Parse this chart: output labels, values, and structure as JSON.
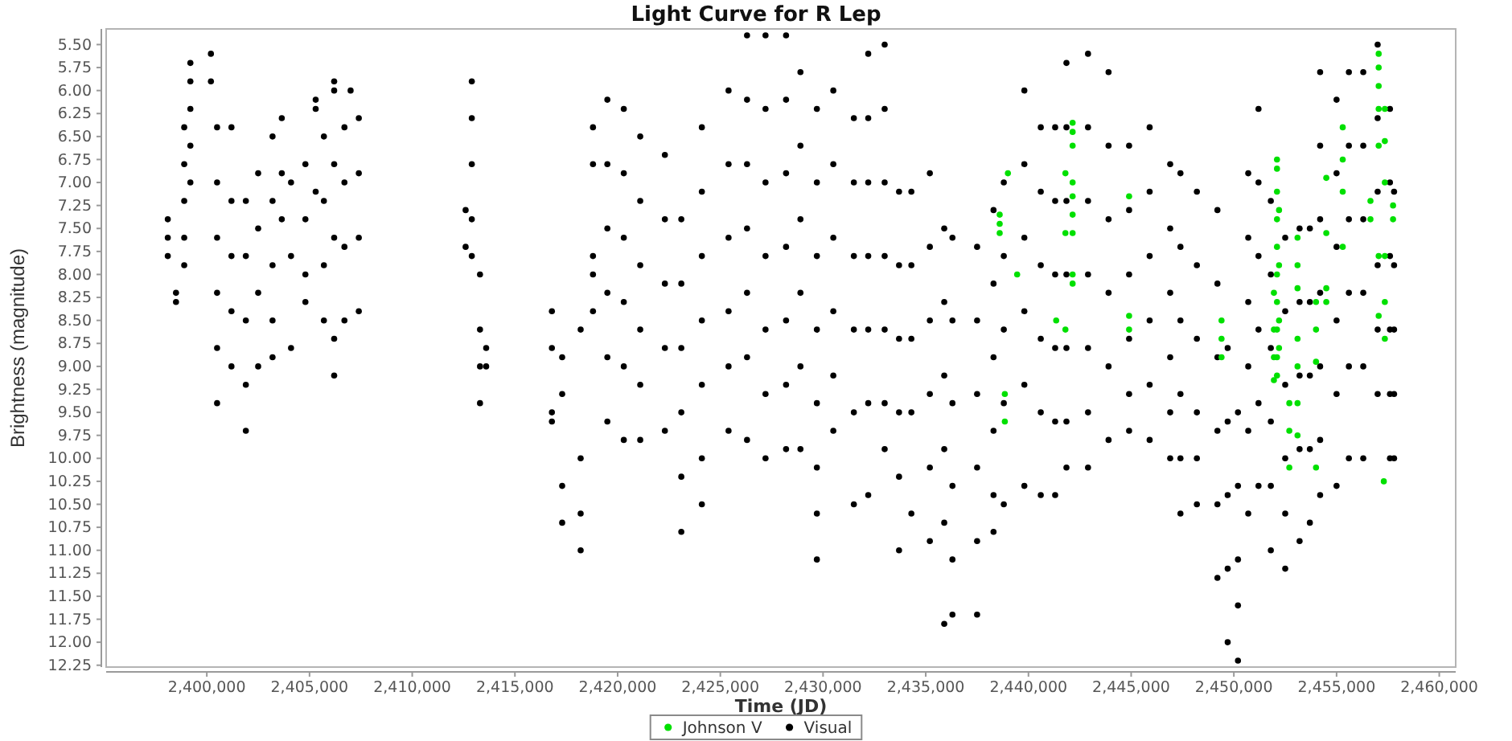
{
  "chart_data": {
    "type": "scatter",
    "title": "Light Curve for R Lep",
    "xlabel": "Time (JD)",
    "ylabel": "Brightness (magnitude)",
    "xlim": [
      2395100,
      2460800
    ],
    "ylim": [
      12.27,
      5.33
    ],
    "xticks": [
      {
        "value": 2400000,
        "label": "2,400,000"
      },
      {
        "value": 2405000,
        "label": "2,405,000"
      },
      {
        "value": 2410000,
        "label": "2,410,000"
      },
      {
        "value": 2415000,
        "label": "2,415,000"
      },
      {
        "value": 2420000,
        "label": "2,420,000"
      },
      {
        "value": 2425000,
        "label": "2,425,000"
      },
      {
        "value": 2430000,
        "label": "2,430,000"
      },
      {
        "value": 2435000,
        "label": "2,435,000"
      },
      {
        "value": 2440000,
        "label": "2,440,000"
      },
      {
        "value": 2445000,
        "label": "2,445,000"
      },
      {
        "value": 2450000,
        "label": "2,450,000"
      },
      {
        "value": 2455000,
        "label": "2,455,000"
      },
      {
        "value": 2460000,
        "label": "2,460,000"
      }
    ],
    "yticks": [
      {
        "value": 5.5,
        "label": "5.50"
      },
      5.75,
      {
        "value": 6,
        "label": "6.00"
      },
      6.25,
      {
        "value": 6.5,
        "label": "6.50"
      },
      6.75,
      {
        "value": 7,
        "label": "7.00"
      },
      7.25,
      {
        "value": 7.5,
        "label": "7.50"
      },
      7.75,
      {
        "value": 8,
        "label": "8.00"
      },
      8.25,
      {
        "value": 8.5,
        "label": "8.50"
      },
      8.75,
      {
        "value": 9,
        "label": "9.00"
      },
      9.25,
      {
        "value": 9.5,
        "label": "9.50"
      },
      9.75,
      {
        "value": 10,
        "label": "10.00"
      },
      10.25,
      {
        "value": 10.5,
        "label": "10.50"
      },
      10.75,
      {
        "value": 11,
        "label": "11.00"
      },
      11.25,
      {
        "value": 11.5,
        "label": "11.50"
      },
      11.75,
      {
        "value": 12,
        "label": "12.00"
      },
      12.25
    ],
    "marker": "circle",
    "legend": "bottom",
    "series": [
      {
        "name": "Johnson V",
        "color": "#00e000",
        "x": [
          2438600,
          2438600,
          2438600,
          2439000,
          2438850,
          2438850,
          2439450,
          2441350,
          2441800,
          2441800,
          2441800,
          2442150,
          2442150,
          2442150,
          2442150,
          2442150,
          2442150,
          2442150,
          2442150,
          2442150,
          2444900,
          2444900,
          2444900,
          2449400,
          2449400,
          2449400,
          2451950,
          2451950,
          2451950,
          2451950,
          2452100,
          2452100,
          2452100,
          2452100,
          2452100,
          2452100,
          2452100,
          2452100,
          2452100,
          2452100,
          2452200,
          2452200,
          2452200,
          2452200,
          2452700,
          2452700,
          2452700,
          2453100,
          2453100,
          2453100,
          2453100,
          2453100,
          2453100,
          2453100,
          2454000,
          2454000,
          2454000,
          2454000,
          2454500,
          2454500,
          2454500,
          2454500,
          2455300,
          2455300,
          2455300,
          2455300,
          2456650,
          2456650,
          2457050,
          2457050,
          2457050,
          2457050,
          2457050,
          2457050,
          2457050,
          2457300,
          2457350,
          2457350,
          2457350,
          2457350,
          2457350,
          2457350,
          2457750,
          2457750
        ],
        "values": [
          7.35,
          7.45,
          7.55,
          6.9,
          9.3,
          9.6,
          8.0,
          8.5,
          6.9,
          7.55,
          8.6,
          6.35,
          6.45,
          6.6,
          7.0,
          7.15,
          7.35,
          7.55,
          8.0,
          8.1,
          7.15,
          8.45,
          8.6,
          8.5,
          8.7,
          8.9,
          8.2,
          8.6,
          8.9,
          9.15,
          6.75,
          6.85,
          7.1,
          7.4,
          7.7,
          8.0,
          8.3,
          8.6,
          8.9,
          9.1,
          7.3,
          7.9,
          8.5,
          8.8,
          9.4,
          9.7,
          10.1,
          7.6,
          7.9,
          8.15,
          8.7,
          9.0,
          9.4,
          9.75,
          8.3,
          8.6,
          8.95,
          10.1,
          6.95,
          7.55,
          8.15,
          8.3,
          6.4,
          6.75,
          7.1,
          7.7,
          7.2,
          7.4,
          5.6,
          5.75,
          5.95,
          6.2,
          6.6,
          7.8,
          8.45,
          10.25,
          6.2,
          6.55,
          7.0,
          7.8,
          8.3,
          8.7,
          7.25,
          7.4
        ]
      },
      {
        "name": "Visual",
        "color": "#000000",
        "x": [
          2398100,
          2398100,
          2398100,
          2398500,
          2398500,
          2398900,
          2398900,
          2398900,
          2398900,
          2398900,
          2399200,
          2399200,
          2399200,
          2399200,
          2399200,
          2400200,
          2400200,
          2400500,
          2400500,
          2400500,
          2400500,
          2400500,
          2400500,
          2401200,
          2401200,
          2401200,
          2401200,
          2401200,
          2401900,
          2401900,
          2401900,
          2401900,
          2401900,
          2402500,
          2402500,
          2402500,
          2402500,
          2403200,
          2403200,
          2403200,
          2403200,
          2403200,
          2403650,
          2403650,
          2403650,
          2404100,
          2404100,
          2404100,
          2404800,
          2404800,
          2404800,
          2404800,
          2405300,
          2405300,
          2405300,
          2405700,
          2405700,
          2405700,
          2405700,
          2406200,
          2406200,
          2406200,
          2406200,
          2406200,
          2406200,
          2406700,
          2406700,
          2406700,
          2406700,
          2407000,
          2407400,
          2407400,
          2407400,
          2407400,
          2412600,
          2412600,
          2412900,
          2412900,
          2412900,
          2412900,
          2412900,
          2413300,
          2413300,
          2413300,
          2413300,
          2413600,
          2413600,
          2416800,
          2416800,
          2416800,
          2416800,
          2417300,
          2417300,
          2417300,
          2417300,
          2418200,
          2418200,
          2418200,
          2418200,
          2418800,
          2418800,
          2418800,
          2418800,
          2418800,
          2419500,
          2419500,
          2419500,
          2419500,
          2419500,
          2419500,
          2420300,
          2420300,
          2420300,
          2420300,
          2420300,
          2420300,
          2421100,
          2421100,
          2421100,
          2421100,
          2421100,
          2421100,
          2422300,
          2422300,
          2422300,
          2422300,
          2422300,
          2423100,
          2423100,
          2423100,
          2423100,
          2423100,
          2423100,
          2424100,
          2424100,
          2424100,
          2424100,
          2424100,
          2424100,
          2424100,
          2425400,
          2425400,
          2425400,
          2425400,
          2425400,
          2425400,
          2426300,
          2426300,
          2426300,
          2426300,
          2426300,
          2426300,
          2426300,
          2427200,
          2427200,
          2427200,
          2427200,
          2427200,
          2427200,
          2427200,
          2428200,
          2428200,
          2428200,
          2428200,
          2428200,
          2428200,
          2428200,
          2428900,
          2428900,
          2428900,
          2428900,
          2428900,
          2428900,
          2429700,
          2429700,
          2429700,
          2429700,
          2429700,
          2429700,
          2429700,
          2429700,
          2430500,
          2430500,
          2430500,
          2430500,
          2430500,
          2430500,
          2431500,
          2431500,
          2431500,
          2431500,
          2431500,
          2431500,
          2432200,
          2432200,
          2432200,
          2432200,
          2432200,
          2432200,
          2432200,
          2433000,
          2433000,
          2433000,
          2433000,
          2433000,
          2433000,
          2433000,
          2433700,
          2433700,
          2433700,
          2433700,
          2433700,
          2433700,
          2434300,
          2434300,
          2434300,
          2434300,
          2434300,
          2435200,
          2435200,
          2435200,
          2435200,
          2435200,
          2435200,
          2435900,
          2435900,
          2435900,
          2435900,
          2435900,
          2435900,
          2436300,
          2436300,
          2436300,
          2436300,
          2436300,
          2436300,
          2437500,
          2437500,
          2437500,
          2437500,
          2437500,
          2437500,
          2438300,
          2438300,
          2438300,
          2438300,
          2438300,
          2438300,
          2438800,
          2438800,
          2438800,
          2438800,
          2438800,
          2439800,
          2439800,
          2439800,
          2439800,
          2439800,
          2439800,
          2440600,
          2440600,
          2440600,
          2440600,
          2440600,
          2440600,
          2441300,
          2441300,
          2441300,
          2441300,
          2441300,
          2441300,
          2441850,
          2441850,
          2441850,
          2441850,
          2441850,
          2441850,
          2441850,
          2442900,
          2442900,
          2442900,
          2442900,
          2442900,
          2442900,
          2442900,
          2443900,
          2443900,
          2443900,
          2443900,
          2443900,
          2443900,
          2444900,
          2444900,
          2444900,
          2444900,
          2444900,
          2444900,
          2445900,
          2445900,
          2445900,
          2445900,
          2445900,
          2445900,
          2446900,
          2446900,
          2446900,
          2446900,
          2446900,
          2446900,
          2447400,
          2447400,
          2447400,
          2447400,
          2447400,
          2447400,
          2448200,
          2448200,
          2448200,
          2448200,
          2448200,
          2448200,
          2449200,
          2449200,
          2449200,
          2449200,
          2449200,
          2449200,
          2449700,
          2449700,
          2449700,
          2449700,
          2449700,
          2450200,
          2450200,
          2450200,
          2450200,
          2450200,
          2450700,
          2450700,
          2450700,
          2450700,
          2450700,
          2450700,
          2451200,
          2451200,
          2451200,
          2451200,
          2451200,
          2451200,
          2451800,
          2451800,
          2451800,
          2451800,
          2451800,
          2451800,
          2452500,
          2452500,
          2452500,
          2452500,
          2452500,
          2452500,
          2453200,
          2453200,
          2453200,
          2453200,
          2453200,
          2453700,
          2453700,
          2453700,
          2453700,
          2453700,
          2454200,
          2454200,
          2454200,
          2454200,
          2454200,
          2454200,
          2454200,
          2455000,
          2455000,
          2455000,
          2455000,
          2455000,
          2455000,
          2455600,
          2455600,
          2455600,
          2455600,
          2455600,
          2455600,
          2456300,
          2456300,
          2456300,
          2456300,
          2456300,
          2456300,
          2457000,
          2457000,
          2457000,
          2457000,
          2457000,
          2457000,
          2457600,
          2457600,
          2457600,
          2457600,
          2457600,
          2457600,
          2457800,
          2457800,
          2457800,
          2457800,
          2457800
        ],
        "values": [
          7.4,
          7.6,
          7.8,
          8.2,
          8.3,
          6.4,
          6.8,
          7.2,
          7.6,
          7.9,
          5.7,
          5.9,
          6.2,
          6.6,
          7.0,
          5.6,
          5.9,
          6.4,
          7.0,
          7.6,
          8.2,
          8.8,
          9.4,
          6.4,
          7.2,
          7.8,
          8.4,
          9.0,
          7.2,
          7.8,
          8.5,
          9.2,
          9.7,
          6.9,
          7.5,
          8.2,
          9.0,
          6.5,
          7.2,
          7.9,
          8.5,
          8.9,
          6.3,
          6.9,
          7.4,
          7.0,
          7.8,
          8.8,
          6.8,
          7.4,
          8.0,
          8.3,
          6.1,
          6.2,
          7.1,
          6.5,
          7.2,
          7.9,
          8.5,
          5.9,
          6.0,
          6.8,
          7.6,
          8.7,
          9.1,
          6.4,
          7.0,
          7.7,
          8.5,
          6.0,
          6.3,
          6.9,
          7.6,
          8.4,
          7.3,
          7.7,
          5.9,
          6.3,
          6.8,
          7.4,
          7.8,
          8.0,
          8.6,
          9.0,
          9.4,
          8.8,
          9.0,
          8.4,
          8.8,
          9.5,
          9.6,
          8.9,
          9.3,
          10.3,
          10.7,
          8.6,
          10.0,
          10.6,
          11.0,
          6.4,
          6.8,
          7.8,
          8.0,
          8.4,
          6.1,
          6.8,
          7.5,
          8.2,
          8.9,
          9.6,
          6.2,
          6.9,
          7.6,
          8.3,
          9.0,
          9.8,
          6.5,
          7.2,
          7.9,
          8.6,
          9.2,
          9.8,
          6.7,
          7.4,
          8.1,
          8.8,
          9.7,
          7.4,
          8.1,
          8.8,
          9.5,
          10.2,
          10.8,
          6.4,
          7.1,
          7.8,
          8.5,
          9.2,
          10.0,
          10.5,
          6.0,
          6.8,
          7.6,
          8.4,
          9.0,
          9.7,
          5.4,
          6.1,
          6.8,
          7.5,
          8.2,
          8.9,
          9.8,
          5.4,
          6.2,
          7.0,
          7.8,
          8.6,
          9.3,
          10.0,
          5.4,
          6.1,
          6.9,
          7.7,
          8.5,
          9.2,
          9.9,
          5.8,
          6.6,
          7.4,
          8.2,
          9.0,
          9.9,
          6.2,
          7.0,
          7.8,
          8.6,
          9.4,
          10.1,
          10.6,
          11.1,
          6.0,
          6.8,
          7.6,
          8.4,
          9.1,
          9.7,
          6.3,
          7.0,
          7.8,
          8.6,
          9.5,
          10.5,
          5.6,
          6.3,
          7.0,
          7.8,
          8.6,
          9.4,
          10.4,
          5.5,
          6.2,
          7.0,
          7.8,
          8.6,
          9.4,
          9.9,
          7.1,
          7.9,
          8.7,
          9.5,
          10.2,
          11.0,
          7.1,
          7.9,
          8.7,
          9.5,
          10.6,
          6.9,
          7.7,
          8.5,
          9.3,
          10.1,
          10.9,
          7.5,
          8.3,
          9.1,
          9.9,
          10.7,
          11.8,
          7.6,
          8.5,
          9.4,
          10.3,
          11.1,
          11.7,
          7.7,
          8.5,
          9.3,
          10.1,
          10.9,
          11.7,
          7.3,
          8.1,
          8.9,
          9.7,
          10.4,
          10.8,
          7.0,
          7.8,
          8.6,
          9.4,
          10.5,
          6.0,
          6.8,
          7.6,
          8.4,
          9.2,
          10.3,
          6.4,
          7.1,
          7.9,
          8.7,
          9.5,
          10.4,
          6.4,
          7.2,
          8.0,
          8.8,
          9.6,
          10.4,
          5.7,
          6.4,
          7.2,
          8.0,
          8.8,
          9.6,
          10.1,
          5.6,
          6.4,
          7.2,
          8.0,
          8.8,
          9.5,
          10.1,
          5.8,
          6.6,
          7.4,
          8.2,
          9.0,
          9.8,
          6.6,
          7.3,
          8.0,
          8.7,
          9.3,
          9.7,
          6.4,
          7.1,
          7.8,
          8.5,
          9.2,
          9.8,
          6.8,
          7.5,
          8.2,
          8.9,
          9.5,
          10.0,
          6.9,
          7.7,
          8.5,
          9.3,
          10.0,
          10.6,
          7.1,
          7.9,
          8.7,
          9.5,
          10.0,
          10.5,
          7.3,
          8.1,
          8.9,
          9.7,
          10.5,
          11.3,
          8.8,
          9.6,
          10.4,
          11.2,
          12.0,
          9.5,
          10.3,
          11.1,
          11.6,
          12.2,
          6.9,
          7.6,
          8.3,
          9.0,
          9.7,
          10.6,
          6.2,
          7.0,
          7.8,
          8.6,
          9.4,
          10.3,
          7.2,
          8.0,
          8.8,
          9.6,
          10.3,
          11.0,
          7.6,
          8.4,
          9.2,
          10.0,
          10.6,
          11.2,
          7.5,
          8.3,
          9.1,
          9.9,
          10.9,
          7.5,
          8.3,
          9.1,
          9.9,
          10.7,
          5.8,
          6.6,
          7.4,
          8.2,
          9.0,
          9.8,
          10.4,
          6.1,
          6.9,
          7.7,
          8.5,
          9.3,
          10.3,
          5.8,
          6.6,
          7.4,
          8.2,
          9.0,
          10.0,
          5.8,
          6.6,
          7.4,
          8.2,
          9.0,
          10.0,
          5.5,
          6.3,
          7.1,
          7.9,
          8.6,
          9.3,
          6.2,
          7.0,
          7.8,
          8.6,
          9.3,
          10.0,
          7.1,
          7.9,
          8.6,
          9.3,
          10.0
        ]
      }
    ]
  }
}
